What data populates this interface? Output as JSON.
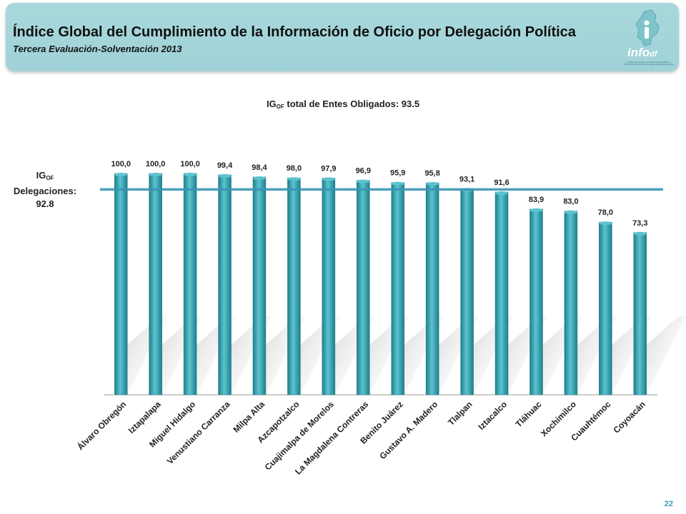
{
  "header": {
    "title": "Índice Global del Cumplimiento de la Información de Oficio por Delegación Política",
    "subtitle": "Tercera Evaluación-Solventación 2013",
    "logo_text": "info",
    "logo_small": "df",
    "logo_caption": "Instituto de Acceso a la Información Pública y Protección de Datos Personales del Distrito Federal"
  },
  "chart_title": {
    "prefix": "IG",
    "sub": "OF",
    "rest": " total de Entes Obligados: 93.5"
  },
  "side_label": {
    "prefix": "IG",
    "sub": "OF",
    "line2": "Delegaciones:",
    "line3": "92.8"
  },
  "page_number": "22",
  "colors": {
    "bar": "#2aa0b0",
    "bar_dark": "#1d7f8c",
    "bar_light": "#5cc3cf",
    "avg_line": "#3b95b4",
    "header": "#a9d8dc"
  },
  "chart_data": {
    "type": "bar",
    "categories": [
      "Álvaro Obregón",
      "Iztapalapa",
      "Miguel Hidalgo",
      "Venustiano Carranza",
      "Milpa Alta",
      "Azcapotzalco",
      "Cuajimalpa de Morelos",
      "La Magdalena Contreras",
      "Benito Juárez",
      "Gustavo A. Madero",
      "Tlalpan",
      "Iztacalco",
      "Tláhuac",
      "Xochimilco",
      "Cuauhtémoc",
      "Coyoacán"
    ],
    "values": [
      100.0,
      100.0,
      100.0,
      99.4,
      98.4,
      98.0,
      97.9,
      96.9,
      95.9,
      95.8,
      93.1,
      91.6,
      83.9,
      83.0,
      78.0,
      73.3
    ],
    "value_labels": [
      "100,0",
      "100,0",
      "100,0",
      "99,4",
      "98,4",
      "98,0",
      "97,9",
      "96,9",
      "95,9",
      "95,8",
      "93,1",
      "91,6",
      "83,9",
      "83,0",
      "78,0",
      "73,3"
    ],
    "reference_line": 92.8,
    "title": "IG OF total de Entes Obligados: 93.5",
    "xlabel": "",
    "ylabel": "",
    "ylim": [
      0,
      100
    ],
    "grid": false,
    "legend": "none"
  }
}
